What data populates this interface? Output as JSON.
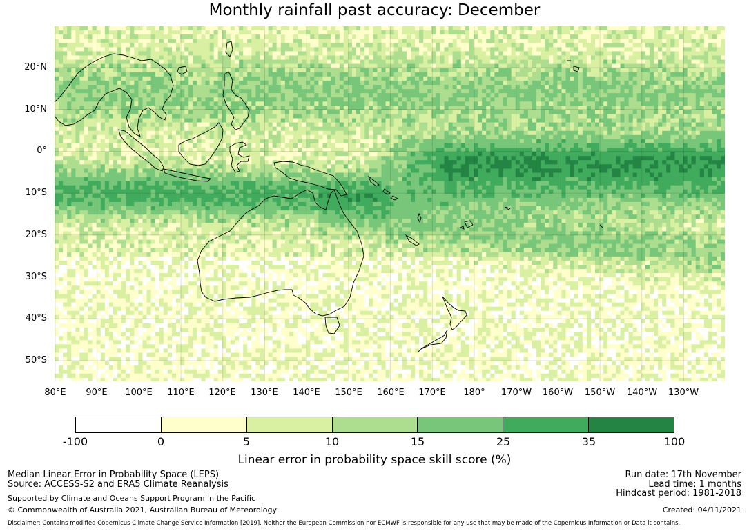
{
  "title": "Monthly rainfall past accuracy: December",
  "map": {
    "lat_labels": [
      "20°N",
      "10°N",
      "0°",
      "10°S",
      "20°S",
      "30°S",
      "40°S",
      "50°S"
    ],
    "lon_labels": [
      "80°E",
      "90°E",
      "100°E",
      "110°E",
      "120°E",
      "130°E",
      "140°E",
      "150°E",
      "160°E",
      "170°E",
      "180°",
      "170°W",
      "160°W",
      "150°W",
      "140°W",
      "130°W"
    ],
    "region": "Indo-Pacific, Australia, New Zealand"
  },
  "legend": {
    "ticks": [
      "-100",
      "0",
      "5",
      "10",
      "15",
      "25",
      "35",
      "100"
    ],
    "colors": [
      "#ffffff",
      "#ffffcc",
      "#d9f0a3",
      "#addd8e",
      "#78c679",
      "#41ab5d",
      "#238443"
    ],
    "label": "Linear error in probability space skill score (%)"
  },
  "info": {
    "line1": "Median Linear Error in Probability Space (LEPS)",
    "line2": "Source: ACCESS-S2 and ERA5 Climate Reanalysis",
    "line3": "Supported by Climate and Oceans Support Program in the Pacific",
    "line4": "© Commonwealth of Australia 2021, Australian Bureau of Meteorology",
    "run_date": "Run date: 17th November",
    "lead_time": "Lead time: 1 months",
    "hindcast": "Hindcast period: 1981-2018",
    "created": "Created: 04/11/2021",
    "disclaimer": "Disclaimer: Contains modified Copernicus Climate Change Service Information [2019]. Neither the European Commission nor ECMWF is responsible for any use that may be made of the Copernicus Information or Data it contains."
  }
}
